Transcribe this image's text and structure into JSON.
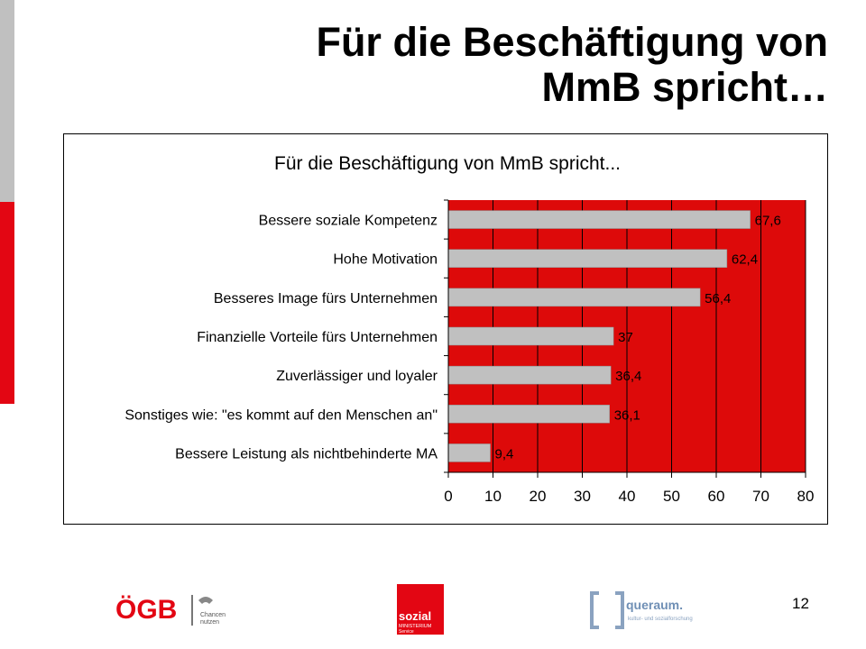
{
  "slide": {
    "title_line1": "Für die Beschäftigung von",
    "title_line2": "MmB spricht…",
    "page_number": "12"
  },
  "logos": {
    "oegb": {
      "text": "ÖGB",
      "tagline_1": "Chancen",
      "tagline_2": "nutzen"
    },
    "sozial": {
      "line1": "sozial",
      "line2": "MINISTERIUM",
      "line3": "Service"
    },
    "queraum": {
      "name": "queraum.",
      "tagline": "kultur- und sozialforschung"
    }
  },
  "colors": {
    "plot_background": "#dd0a0a",
    "bar_fill": "#c0c0c0",
    "side_red": "#e30613",
    "side_gray": "#c0c0c0"
  },
  "chart_data": {
    "type": "bar",
    "orientation": "horizontal",
    "title": "Für die Beschäftigung von MmB spricht...",
    "categories": [
      "Bessere soziale Kompetenz",
      "Hohe Motivation",
      "Besseres Image fürs Unternehmen",
      "Finanzielle Vorteile fürs Unternehmen",
      "Zuverlässiger und loyaler",
      "Sonstiges wie: \"es kommt auf den Menschen an\"",
      "Bessere Leistung als nichtbehinderte MA"
    ],
    "values": [
      67.6,
      62.4,
      56.4,
      37,
      36.4,
      36.1,
      9.4
    ],
    "value_labels": [
      "67,6",
      "62,4",
      "56,4",
      "37",
      "36,4",
      "36,1",
      "9,4"
    ],
    "xlim": [
      0,
      80
    ],
    "x_ticks": [
      0,
      10,
      20,
      30,
      40,
      50,
      60,
      70,
      80
    ],
    "x_tick_labels": [
      "0",
      "10",
      "20",
      "30",
      "40",
      "50",
      "60",
      "70",
      "80"
    ],
    "grid": "vertical",
    "legend": "none"
  }
}
